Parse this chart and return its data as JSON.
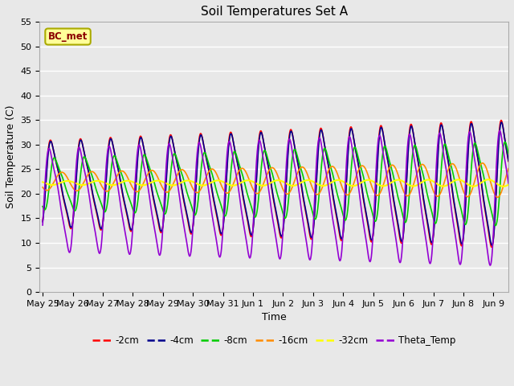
{
  "title": "Soil Temperatures Set A",
  "xlabel": "Time",
  "ylabel": "Soil Temperature (C)",
  "ylim": [
    0,
    55
  ],
  "xlim_days": [
    -0.1,
    15.5
  ],
  "x_tick_labels": [
    "May 25",
    "May 26",
    "May 27",
    "May 28",
    "May 29",
    "May 30",
    "May 31",
    "Jun 1",
    "Jun 2",
    "Jun 3",
    "Jun 4",
    "Jun 5",
    "Jun 6",
    "Jun 7",
    "Jun 8",
    "Jun 9"
  ],
  "annotation": "BC_met",
  "annotation_color": "#8B0000",
  "annotation_bg": "#FFFF99",
  "annotation_edge": "#AAAA00",
  "lines": [
    {
      "label": "-2cm",
      "color": "#FF0000",
      "lw": 1.2
    },
    {
      "label": "-4cm",
      "color": "#00008B",
      "lw": 1.2
    },
    {
      "label": "-8cm",
      "color": "#00CC00",
      "lw": 1.2
    },
    {
      "label": "-16cm",
      "color": "#FF8C00",
      "lw": 1.2
    },
    {
      "label": "-32cm",
      "color": "#FFFF00",
      "lw": 1.5
    },
    {
      "label": "Theta_Temp",
      "color": "#9400D3",
      "lw": 1.2
    }
  ],
  "fig_bg_color": "#E8E8E8",
  "ax_bg_color": "#E8E8E8",
  "grid_color": "#FFFFFF",
  "title_fontsize": 11,
  "label_fontsize": 9,
  "tick_fontsize": 8
}
